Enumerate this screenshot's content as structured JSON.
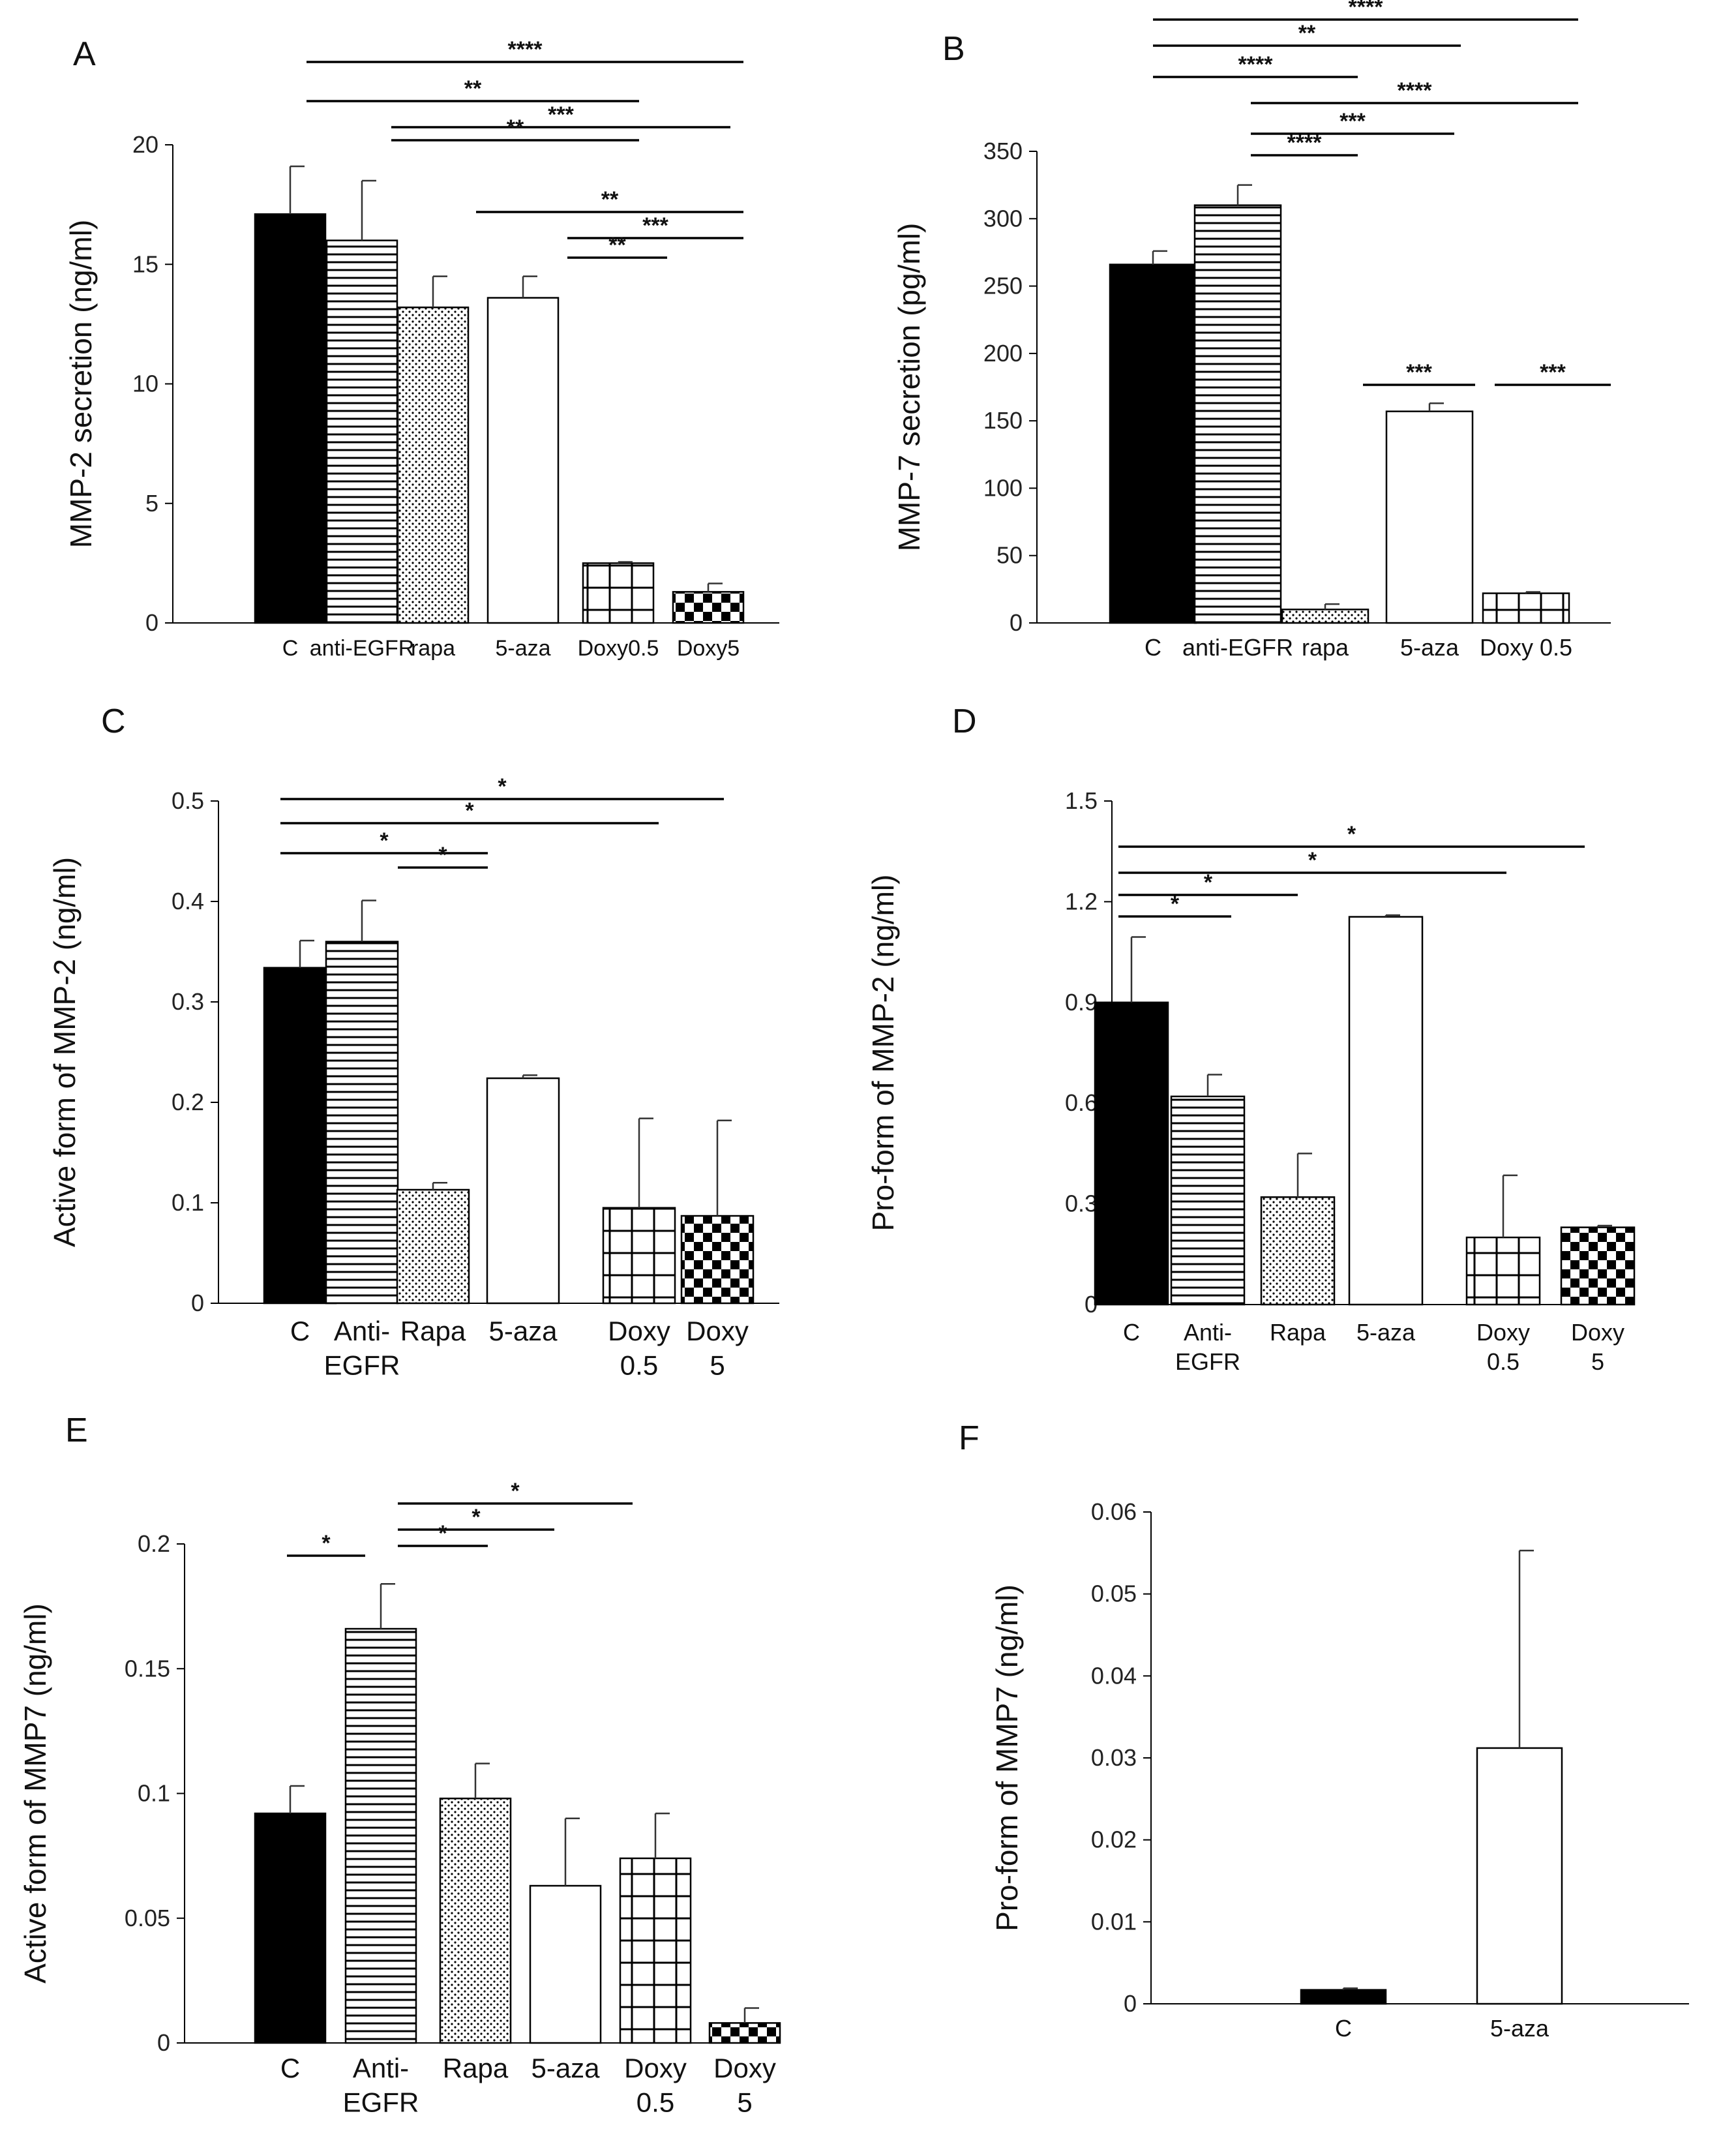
{
  "chart_data": [
    {
      "panel": "A",
      "type": "bar",
      "ylabel": "MMP-2 secretion (ng/ml)",
      "ylim": [
        0,
        20
      ],
      "yticks": [
        "0",
        "5",
        "10",
        "15",
        "20"
      ],
      "categories": [
        "C",
        "anti-EGFR",
        "rapa",
        "5-aza",
        "Doxy0.5",
        "Doxy5"
      ],
      "values": [
        17.1,
        16.0,
        13.2,
        13.6,
        2.5,
        1.3
      ],
      "errors": [
        2.0,
        2.5,
        1.3,
        0.9,
        0.05,
        0.35
      ],
      "patterns": [
        "solid",
        "hlines",
        "dots",
        "white",
        "grid",
        "checker"
      ],
      "significance": [
        {
          "from": "C",
          "to": "Doxy5",
          "label": "****"
        },
        {
          "from": "C",
          "to": "Doxy0.5",
          "label": "**"
        },
        {
          "from": "anti-EGFR",
          "to": "Doxy5",
          "label": "***"
        },
        {
          "from": "anti-EGFR",
          "to": "Doxy0.5",
          "label": "**"
        },
        {
          "from": "rapa",
          "to": "Doxy5",
          "label": "**"
        },
        {
          "from": "5-aza",
          "to": "Doxy5",
          "label": "***"
        },
        {
          "from": "5-aza",
          "to": "Doxy0.5",
          "label": "**"
        }
      ]
    },
    {
      "panel": "B",
      "type": "bar",
      "ylabel": "MMP-7 secretion (pg/ml)",
      "ylim": [
        0,
        350
      ],
      "yticks": [
        "0",
        "50",
        "100",
        "150",
        "200",
        "250",
        "300",
        "350"
      ],
      "categories": [
        "C",
        "anti-EGFR",
        "rapa",
        "5-aza",
        "Doxy 0.5"
      ],
      "values": [
        266,
        310,
        10,
        157,
        22
      ],
      "errors": [
        10,
        15,
        4,
        6,
        1
      ],
      "patterns": [
        "solid",
        "hlines",
        "dots",
        "white",
        "grid"
      ],
      "significance": [
        {
          "from": "C",
          "to": "Doxy 0.5",
          "label": "****"
        },
        {
          "from": "C",
          "to": "5-aza",
          "label": "**"
        },
        {
          "from": "C",
          "to": "rapa",
          "label": "****"
        },
        {
          "from": "anti-EGFR",
          "to": "Doxy 0.5",
          "label": "****"
        },
        {
          "from": "anti-EGFR",
          "to": "5-aza",
          "label": "***"
        },
        {
          "from": "anti-EGFR",
          "to": "rapa",
          "label": "****"
        },
        {
          "from": "rapa",
          "to": "5-aza",
          "label": "***"
        },
        {
          "from": "5-aza",
          "to": "Doxy 0.5",
          "label": "***"
        }
      ]
    },
    {
      "panel": "C",
      "type": "bar",
      "ylabel": "Active form of MMP-2 (ng/ml)",
      "ylim": [
        0,
        0.5
      ],
      "yticks": [
        "0",
        "0.1",
        "0.2",
        "0.3",
        "0.4",
        "0.5"
      ],
      "categories": [
        "C",
        "Anti-\nEGFR",
        "Rapa",
        "5-aza",
        "Doxy\n0.5",
        "Doxy\n5"
      ],
      "values": [
        0.334,
        0.36,
        0.113,
        0.224,
        0.095,
        0.087
      ],
      "errors": [
        0.027,
        0.041,
        0.007,
        0.003,
        0.089,
        0.095
      ],
      "patterns": [
        "solid",
        "hlines",
        "dots",
        "white",
        "grid",
        "checker"
      ],
      "significance": [
        {
          "from": "C",
          "to": "Doxy\n5",
          "label": "*"
        },
        {
          "from": "C",
          "to": "Doxy\n0.5",
          "label": "*"
        },
        {
          "from": "C",
          "to": "Rapa",
          "label": "*"
        },
        {
          "from": "Anti-\nEGFR",
          "to": "Rapa",
          "label": "*"
        }
      ]
    },
    {
      "panel": "D",
      "type": "bar",
      "ylabel": "Pro-form of MMP-2  (ng/ml)",
      "ylim": [
        0,
        1.5
      ],
      "yticks": [
        "0",
        "0.3",
        "0.6",
        "0.9",
        "1.2",
        "1.5"
      ],
      "categories": [
        "C",
        "Anti-\nEGFR",
        "Rapa",
        "5-aza",
        "Doxy\n0.5",
        "Doxy\n5"
      ],
      "values": [
        0.9,
        0.62,
        0.32,
        1.155,
        0.2,
        0.23
      ],
      "errors": [
        0.195,
        0.065,
        0.13,
        0.005,
        0.185,
        0.005
      ],
      "patterns": [
        "solid",
        "hlines",
        "dots",
        "white",
        "grid",
        "checker"
      ],
      "significance": [
        {
          "from": "C",
          "to": "Doxy\n5",
          "label": "*"
        },
        {
          "from": "C",
          "to": "Doxy\n0.5",
          "label": "*"
        },
        {
          "from": "C",
          "to": "Rapa",
          "label": "*"
        },
        {
          "from": "C",
          "to": "Anti-\nEGFR",
          "label": "*"
        }
      ]
    },
    {
      "panel": "E",
      "type": "bar",
      "ylabel": "Active form of MMP7 (ng/ml)",
      "ylim": [
        0,
        0.2
      ],
      "yticks": [
        "0",
        "0.05",
        "0.1",
        "0.15",
        "0.2"
      ],
      "categories": [
        "C",
        "Anti-\nEGFR",
        "Rapa",
        "5-aza",
        "Doxy\n0.5",
        "Doxy\n5"
      ],
      "values": [
        0.092,
        0.166,
        0.098,
        0.063,
        0.074,
        0.008
      ],
      "errors": [
        0.011,
        0.018,
        0.014,
        0.027,
        0.018,
        0.006
      ],
      "patterns": [
        "solid",
        "hlines",
        "dots",
        "white",
        "grid",
        "checker"
      ],
      "significance": [
        {
          "from": "C",
          "to": "Anti-\nEGFR",
          "label": "*"
        },
        {
          "from": "Anti-\nEGFR",
          "to": "Doxy\n0.5",
          "label": "*"
        },
        {
          "from": "Anti-\nEGFR",
          "to": "5-aza",
          "label": "*"
        },
        {
          "from": "Anti-\nEGFR",
          "to": "Rapa",
          "label": "*"
        }
      ]
    },
    {
      "panel": "F",
      "type": "bar",
      "ylabel": "Pro-form of MMP7 (ng/ml)",
      "ylim": [
        0,
        0.06
      ],
      "yticks": [
        "0",
        "0.01",
        "0.02",
        "0.03",
        "0.04",
        "0.05",
        "0.06"
      ],
      "categories": [
        "C",
        "5-aza"
      ],
      "values": [
        0.0017,
        0.0312
      ],
      "errors": [
        0.0002,
        0.0241
      ],
      "patterns": [
        "solid",
        "white"
      ],
      "significance": []
    }
  ]
}
